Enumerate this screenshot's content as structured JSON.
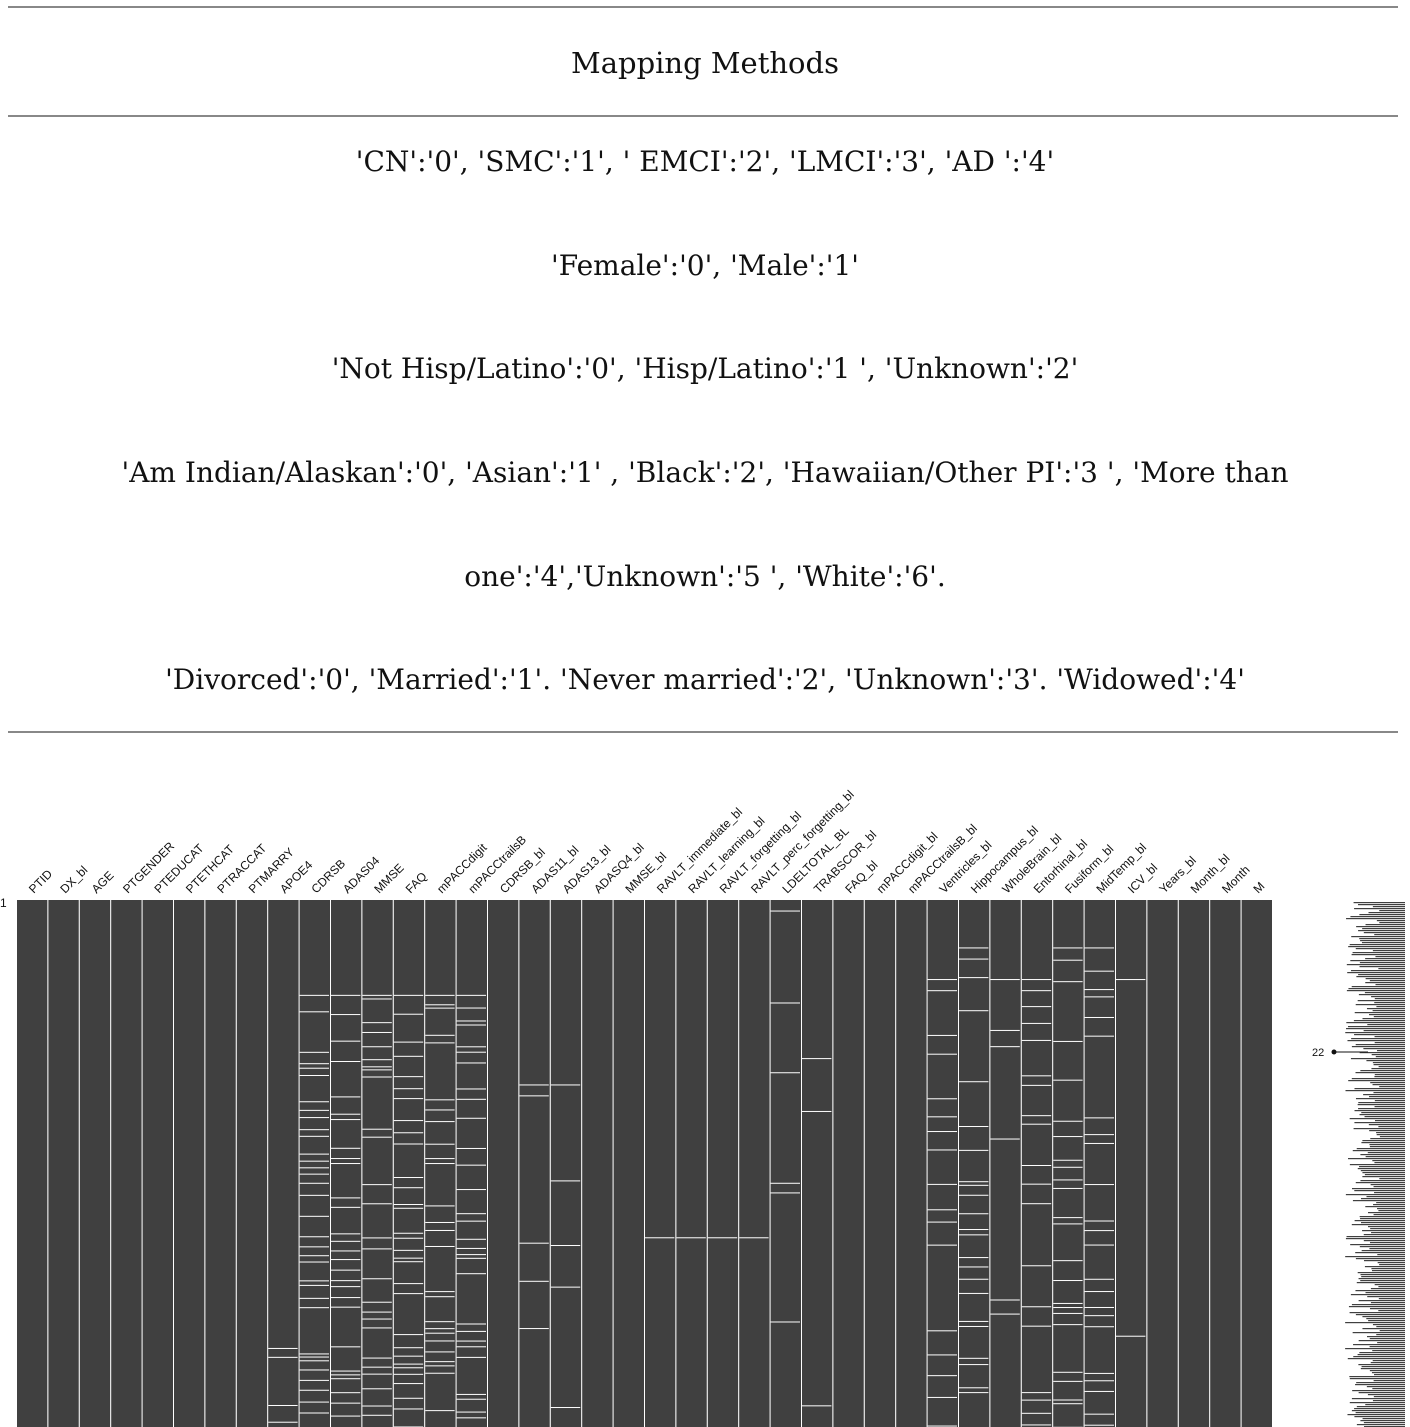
{
  "table": {
    "header": "Mapping Methods",
    "lines": [
      "'CN':'0', 'SMC':'1', ' EMCI':'2', 'LMCI':'3', 'AD ':'4'",
      "'Female':'0', 'Male':'1'",
      "'Not Hisp/Latino':'0', 'Hisp/Latino':'1 ', 'Unknown':'2'",
      "'Am Indian/Alaskan':'0', 'Asian':'1' , 'Black':'2', 'Hawaiian/Other PI':'3 ', 'More than",
      "one':'4','Unknown':'5 ', 'White':'6'.",
      "'Divorced':'0', 'Married':'1'. 'Never married':'2', 'Unknown':'3'. 'Widowed':'4'"
    ]
  },
  "chart_data": {
    "type": "heatmap",
    "description_type": "missing-value matrix",
    "columns": [
      "PTID",
      "DX_bl",
      "AGE",
      "PTGENDER",
      "PTEDUCAT",
      "PTETHCAT",
      "PTRACCAT",
      "PTMARRY",
      "APOE4",
      "CDRSB",
      "ADAS04",
      "MMSE",
      "FAQ",
      "mPACCdigit",
      "mPACCtrailsB",
      "CDRSB_bl",
      "ADAS11_bl",
      "ADAS13_bl",
      "ADASQ4_bl",
      "MMSE_bl",
      "RAVLT_immediate_bl",
      "RAVLT_learning_bl",
      "RAVLT_forgetting_bl",
      "RAVLT_perc_forgetting_bl",
      "LDELTOTAL_BL",
      "TRABSCOR_bl",
      "FAQ_bl",
      "mPACCdigit_bl",
      "mPACCtrailsB_bl",
      "Ventricles_bl",
      "Hippocampus_bl",
      "WholeBrain_bl",
      "Entorhinal_bl",
      "Fusiform_bl",
      "MidTemp_bl",
      "ICV_bl",
      "Years_bl",
      "Month_bl",
      "Month",
      "M"
    ],
    "row_start_label": "1",
    "sparkline_label": "22",
    "colors": {
      "present": "#404040",
      "missing": "#ffffff"
    }
  }
}
